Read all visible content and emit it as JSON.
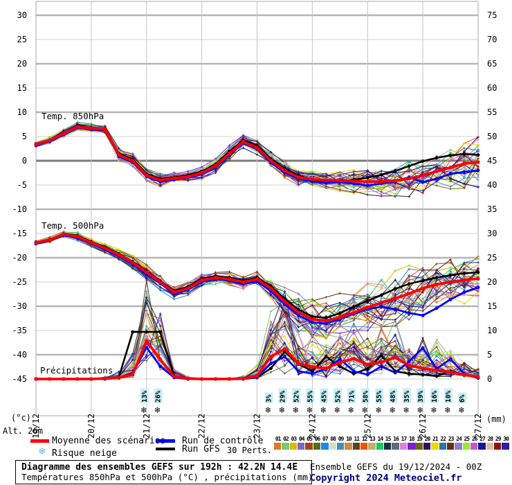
{
  "legend": {
    "mean": "Moyenne des scénarios",
    "control": "Run de contrôle",
    "gfs": "Run GFS",
    "perts": "30 Perts.",
    "snow": "Risque neige"
  },
  "footer": {
    "box_title": "Diagramme des ensembles GEFS sur 192h : 42.2N 14.4E",
    "box_subtitle": "Températures 850hPa et 500hPa (°C) , précipitations (mm)",
    "run_info": "Ensemble GEFS du 19/12/2024 - 00Z",
    "copyright": "Copyright 2024 Meteociel.fr"
  },
  "chart_data": {
    "type": "line",
    "title": "Diagramme des ensembles GEFS sur 192h : 42.2N 14.4E",
    "subtitle": "Températures 850hPa et 500hPa (°C) , précipitations (mm)",
    "alt_label": "Alt. 26m",
    "left_axis_label": "(°c)",
    "right_axis_label": "(mm)",
    "left_ticks": [
      30,
      25,
      20,
      15,
      10,
      5,
      0,
      -5,
      -10,
      -15,
      -20,
      -25,
      -30,
      -35,
      -40,
      -45
    ],
    "right_ticks": [
      75,
      70,
      65,
      60,
      55,
      50,
      45,
      40,
      35,
      30,
      25,
      20,
      15,
      10,
      5,
      0
    ],
    "x_dates": [
      "19/12",
      "20/12",
      "21/12",
      "22/12",
      "23/12",
      "24/12",
      "25/12",
      "26/12",
      "27/12"
    ],
    "hours_step": 6,
    "hours_max": 192,
    "panels": [
      {
        "id": "t850",
        "label": "Temp. 850hPa",
        "unit": "°C",
        "series": [
          {
            "name": "Moyenne des scénarios",
            "color": "#ff0000",
            "values": [
              3.4,
              4.2,
              5.6,
              7.0,
              6.7,
              6.5,
              1.2,
              0.0,
              -3.0,
              -4.0,
              -3.6,
              -3.3,
              -2.5,
              -1.0,
              1.5,
              3.9,
              2.7,
              0.0,
              -2.0,
              -3.4,
              -3.8,
              -4.0,
              -4.1,
              -4.2,
              -4.3,
              -4.3,
              -4.1,
              -3.7,
              -3.0,
              -2.2,
              -1.4,
              -0.6,
              -0.3
            ]
          },
          {
            "name": "Run de contrôle",
            "color": "#0000ff",
            "values": [
              3.2,
              4.0,
              5.4,
              6.8,
              6.5,
              6.3,
              0.9,
              -0.3,
              -3.3,
              -4.3,
              -3.9,
              -3.5,
              -2.8,
              -1.3,
              1.2,
              3.6,
              2.4,
              -0.4,
              -2.4,
              -3.7,
              -4.3,
              -4.6,
              -4.4,
              -4.7,
              -5.1,
              -4.7,
              -4.3,
              -3.4,
              -4.4,
              -3.7,
              -2.7,
              -2.3,
              -2.0
            ]
          },
          {
            "name": "Run GFS",
            "color": "#000000",
            "values": [
              3.3,
              4.1,
              5.5,
              7.2,
              6.8,
              6.6,
              1.5,
              0.3,
              -2.7,
              -3.7,
              -3.4,
              -3.0,
              -2.2,
              -0.7,
              1.9,
              4.2,
              3.1,
              0.4,
              -1.6,
              -3.0,
              -3.9,
              -4.4,
              -4.3,
              -3.9,
              -3.5,
              -2.9,
              -2.1,
              -1.1,
              -0.1,
              0.6,
              1.1,
              1.4,
              1.2
            ]
          }
        ],
        "ensemble_spread": [
          0.6,
          0.6,
          0.8,
          0.9,
          0.8,
          0.8,
          1.3,
          1.5,
          1.4,
          1.2,
          1.0,
          1.0,
          1.2,
          1.3,
          1.5,
          1.4,
          1.3,
          1.6,
          1.9,
          1.9,
          1.6,
          1.6,
          1.9,
          2.2,
          2.5,
          2.8,
          3.1,
          3.4,
          3.7,
          4.0,
          4.3,
          4.6,
          4.8
        ]
      },
      {
        "id": "t500",
        "label": "Temp. 500hPa",
        "unit": "°C",
        "series": [
          {
            "name": "Moyenne des scénarios",
            "color": "#ff0000",
            "values": [
              -16.9,
              -16.3,
              -15.2,
              -15.6,
              -16.9,
              -18.0,
              -19.4,
              -21.0,
              -23.0,
              -25.0,
              -27.1,
              -26.3,
              -24.6,
              -24.1,
              -24.4,
              -25.0,
              -24.4,
              -26.3,
              -29.0,
              -31.3,
              -32.7,
              -33.0,
              -32.3,
              -31.3,
              -30.2,
              -29.3,
              -28.4,
              -27.4,
              -26.3,
              -25.5,
              -25.0,
              -24.6,
              -24.3
            ]
          },
          {
            "name": "Run de contrôle",
            "color": "#0000ff",
            "values": [
              -17.1,
              -16.5,
              -15.4,
              -15.9,
              -17.1,
              -18.3,
              -19.7,
              -21.3,
              -23.4,
              -25.3,
              -27.4,
              -26.6,
              -24.9,
              -24.4,
              -24.7,
              -25.4,
              -24.9,
              -26.9,
              -29.6,
              -31.9,
              -33.3,
              -33.6,
              -32.6,
              -31.6,
              -30.6,
              -30.1,
              -30.6,
              -31.4,
              -31.9,
              -30.4,
              -28.6,
              -27.1,
              -26.1
            ]
          },
          {
            "name": "Run GFS",
            "color": "#000000",
            "values": [
              -16.8,
              -16.2,
              -15.1,
              -15.4,
              -16.7,
              -17.8,
              -19.2,
              -20.8,
              -22.8,
              -24.8,
              -26.8,
              -26.0,
              -24.3,
              -23.8,
              -24.1,
              -24.7,
              -24.1,
              -25.9,
              -28.4,
              -30.7,
              -32.1,
              -32.4,
              -31.4,
              -30.1,
              -28.9,
              -27.7,
              -26.4,
              -25.4,
              -24.7,
              -24.1,
              -23.6,
              -23.2,
              -23.0
            ]
          }
        ],
        "ensemble_spread": [
          0.5,
          0.5,
          0.7,
          0.8,
          0.8,
          0.9,
          1.1,
          1.3,
          1.4,
          1.5,
          1.5,
          1.4,
          1.2,
          1.2,
          1.3,
          1.4,
          1.5,
          2.1,
          2.9,
          3.6,
          4.1,
          4.4,
          4.6,
          4.8,
          4.9,
          5.1,
          5.2,
          5.3,
          5.2,
          5.0,
          4.8,
          4.6,
          4.5
        ]
      },
      {
        "id": "precip",
        "label": "Précipitations",
        "unit": "mm",
        "series": [
          {
            "name": "Moyenne des scénarios",
            "color": "#ff0000",
            "values": [
              0,
              0,
              0,
              0,
              0,
              0.1,
              0.3,
              0.9,
              7.8,
              4.0,
              0.5,
              0.1,
              0,
              0,
              0,
              0.1,
              0.6,
              4.6,
              6.2,
              3.2,
              2.5,
              2.2,
              3.4,
              4.2,
              3.0,
              3.5,
              4.4,
              2.8,
              2.2,
              1.8,
              1.4,
              0.9,
              0.4
            ]
          },
          {
            "name": "Run de contrôle",
            "color": "#0000ff",
            "values": [
              0,
              0,
              0,
              0,
              0,
              0,
              0.2,
              1.2,
              6.5,
              2.6,
              0.3,
              0,
              0,
              0,
              0,
              0,
              0.4,
              3.2,
              4.6,
              1.6,
              1.1,
              2.1,
              4.1,
              1.6,
              0.9,
              2.6,
              1.3,
              3.6,
              6.4,
              2.1,
              4.1,
              1.1,
              0.3
            ]
          },
          {
            "name": "Run GFS",
            "color": "#000000",
            "values": [
              0,
              0,
              0,
              0,
              0,
              0,
              0.4,
              9.7,
              9.7,
              9.7,
              0.6,
              0,
              0,
              0,
              0,
              0,
              0.3,
              2.2,
              5.6,
              3.1,
              1.6,
              4.6,
              2.6,
              1.1,
              2.1,
              4.8,
              1.6,
              1.1,
              0.9,
              0.6,
              1.6,
              0.9,
              0.2
            ]
          }
        ],
        "ensemble_spread": [
          0,
          0,
          0,
          0,
          0,
          0.3,
          1,
          4,
          13,
          8,
          2,
          0.5,
          0,
          0,
          0,
          0.5,
          2,
          6,
          8,
          6,
          5,
          5,
          6,
          6,
          5,
          5,
          6,
          5,
          5,
          5,
          4.5,
          3,
          1.5
        ]
      }
    ],
    "snow_risk": {
      "label": "Risque neige",
      "groups": [
        {
          "start_hour": 48,
          "step_hours": 6,
          "percent": [
            13,
            26
          ]
        },
        {
          "start_hour": 102,
          "step_hours": 6,
          "percent": [
            3,
            29,
            52,
            55,
            45,
            52,
            71,
            58,
            55,
            48,
            35,
            39,
            16,
            10,
            6
          ]
        }
      ]
    },
    "members": {
      "count": 30,
      "labels": [
        "01",
        "02",
        "03",
        "04",
        "05",
        "06",
        "07",
        "08",
        "09",
        "10",
        "11",
        "12",
        "13",
        "14",
        "15",
        "16",
        "17",
        "18",
        "19",
        "20",
        "21",
        "22",
        "23",
        "24",
        "25",
        "26",
        "27",
        "28",
        "29",
        "30"
      ],
      "colors": [
        "#e07820",
        "#78c878",
        "#d4bc00",
        "#8064c8",
        "#a84414",
        "#507014",
        "#1c88f0",
        "#dcdcc4",
        "#3894b4",
        "#cc8c44",
        "#5c4020",
        "#ec5404",
        "#c4ac6c",
        "#14cc5c",
        "#1c2c44",
        "#5c6c7c",
        "#d884dc",
        "#7c1cd8",
        "#6c6414",
        "#2c1064",
        "#ecd800",
        "#2c74a4",
        "#643014",
        "#8c7cd0",
        "#98ec28",
        "#c858c8",
        "#14149c",
        "#d4c49c",
        "#8c1414",
        "#2c1ca4"
      ]
    },
    "style": {
      "mean_color": "#ff0000",
      "control_color": "#0000ff",
      "gfs_color": "#000000",
      "grid_thin": "#d0d0d0",
      "grid_thick": "#b4b4b4",
      "zero_line": "#7a7a7a",
      "snow_icon_color": "#5ec0ec",
      "snow_text_color": "#1515cc",
      "snow_text_bg": "#c6eff9"
    }
  }
}
